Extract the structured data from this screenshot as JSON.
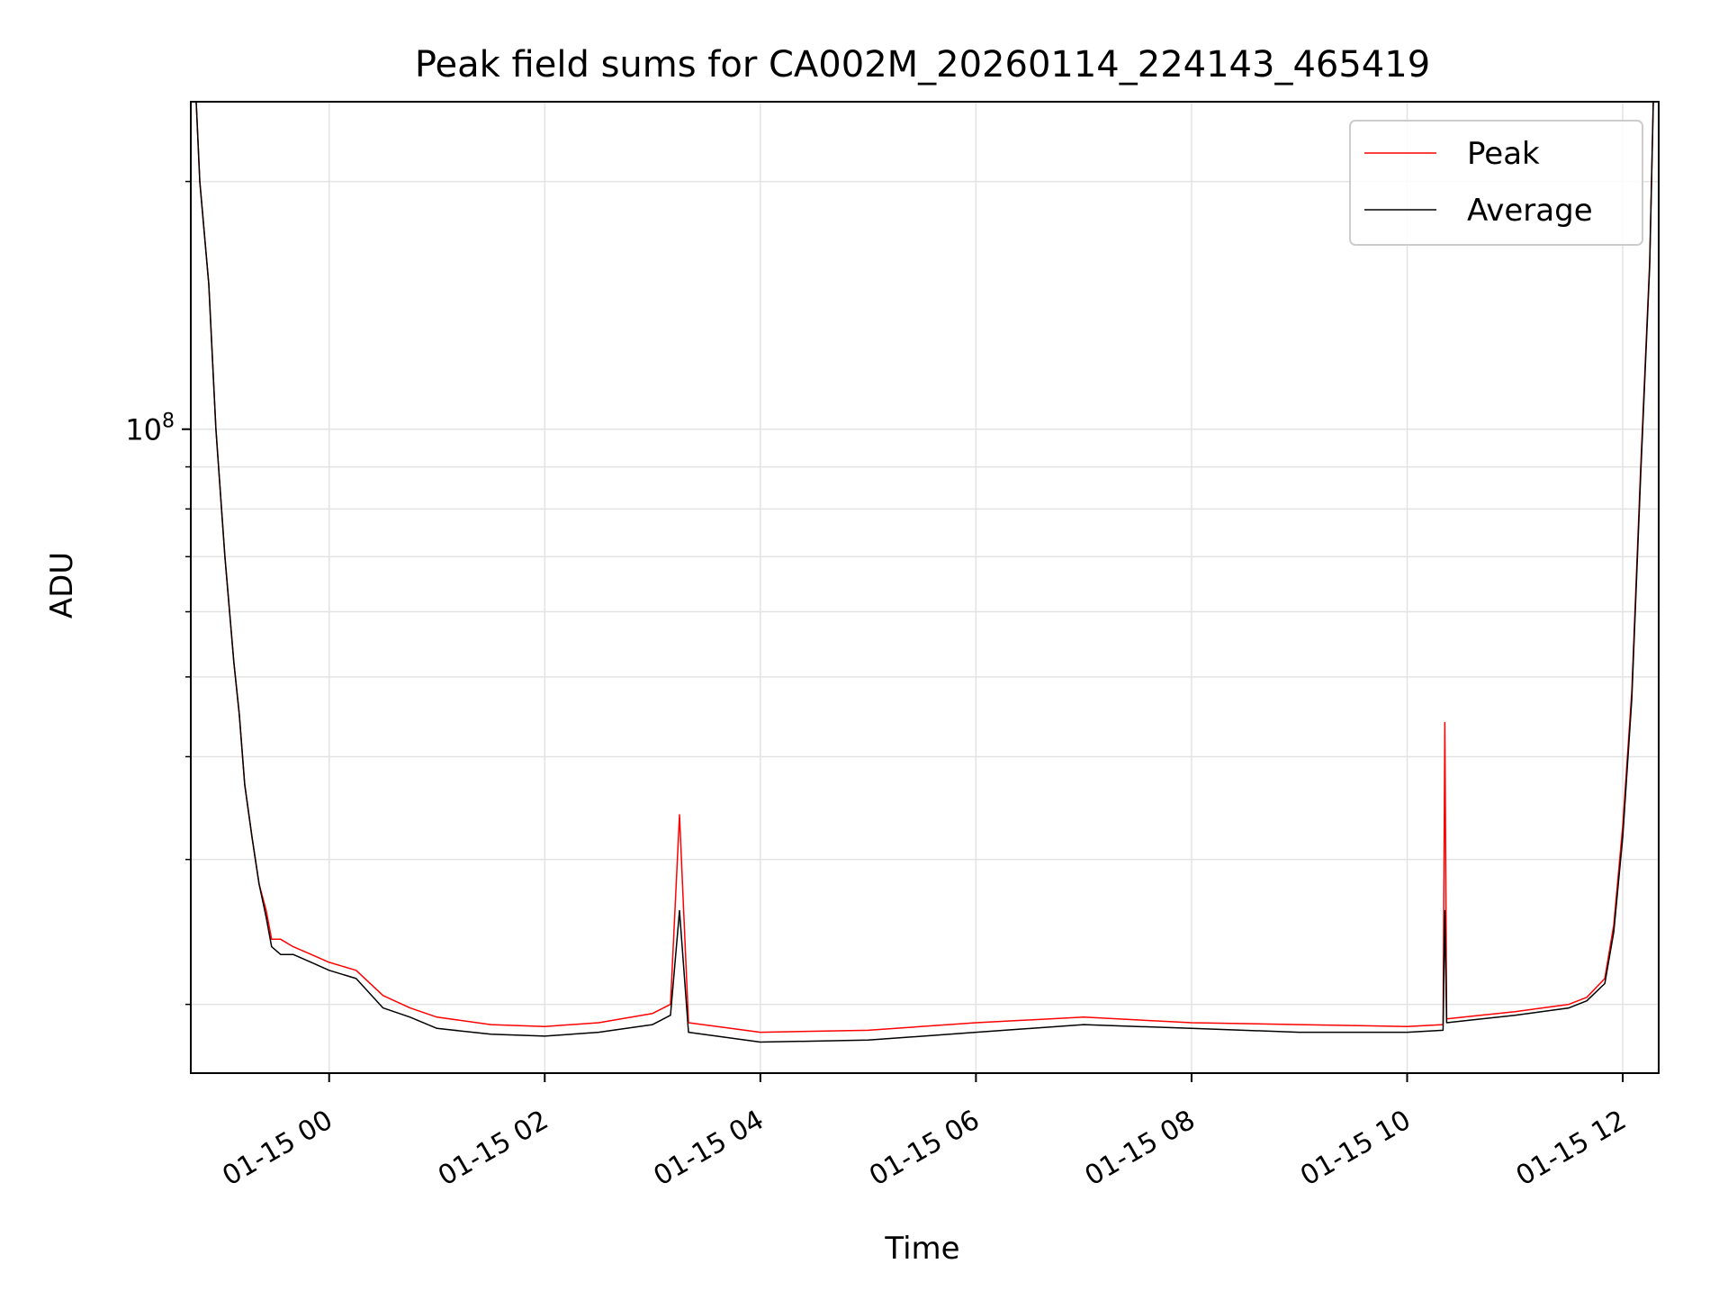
{
  "chart_data": {
    "type": "line",
    "title": "Peak field sums for CA002M_20260114_224143_465419",
    "xlabel": "Time",
    "ylabel": "ADU",
    "y_scale": "log",
    "y_tick_label": "10",
    "y_tick_exp": "8",
    "y_major_tick": 100000000,
    "ylim": [
      16500000,
      250000000
    ],
    "xlim": [
      "2026-01-14T22:43",
      "2026-01-15T12:20"
    ],
    "x_tick_labels": [
      "01-15 00",
      "01-15 02",
      "01-15 04",
      "01-15 06",
      "01-15 08",
      "01-15 10",
      "01-15 12"
    ],
    "x_ticks": [
      "2026-01-15T00:00",
      "2026-01-15T02:00",
      "2026-01-15T04:00",
      "2026-01-15T06:00",
      "2026-01-15T08:00",
      "2026-01-15T10:00",
      "2026-01-15T12:00"
    ],
    "y_minor_ticks": [
      20000000,
      30000000,
      40000000,
      50000000,
      60000000,
      70000000,
      80000000,
      90000000,
      200000000
    ],
    "grid": true,
    "legend": "top-right",
    "series": [
      {
        "name": "Peak",
        "color": "#ff0000",
        "x": [
          "2026-01-14T22:46",
          "2026-01-14T22:48",
          "2026-01-14T22:53",
          "2026-01-14T22:57",
          "2026-01-14T23:02",
          "2026-01-14T23:07",
          "2026-01-14T23:10",
          "2026-01-14T23:13",
          "2026-01-14T23:17",
          "2026-01-14T23:21",
          "2026-01-14T23:25",
          "2026-01-14T23:28",
          "2026-01-14T23:33",
          "2026-01-14T23:40",
          "2026-01-14T23:50",
          "2026-01-15T00:00",
          "2026-01-15T00:15",
          "2026-01-15T00:30",
          "2026-01-15T00:45",
          "2026-01-15T01:00",
          "2026-01-15T01:30",
          "2026-01-15T02:00",
          "2026-01-15T02:30",
          "2026-01-15T03:00",
          "2026-01-15T03:10",
          "2026-01-15T03:15",
          "2026-01-15T03:20",
          "2026-01-15T04:00",
          "2026-01-15T05:00",
          "2026-01-15T06:00",
          "2026-01-15T07:00",
          "2026-01-15T08:00",
          "2026-01-15T09:00",
          "2026-01-15T10:00",
          "2026-01-15T10:20",
          "2026-01-15T10:21",
          "2026-01-15T10:22",
          "2026-01-15T11:00",
          "2026-01-15T11:30",
          "2026-01-15T11:40",
          "2026-01-15T11:50",
          "2026-01-15T11:55",
          "2026-01-15T12:00",
          "2026-01-15T12:05",
          "2026-01-15T12:10",
          "2026-01-15T12:15",
          "2026-01-15T12:17"
        ],
        "values": [
          250000000,
          200000000,
          150000000,
          100000000,
          70000000,
          52000000,
          45000000,
          37000000,
          32000000,
          28000000,
          26000000,
          24000000,
          24000000,
          23500000,
          23000000,
          22500000,
          22000000,
          20500000,
          19800000,
          19300000,
          18900000,
          18800000,
          19000000,
          19500000,
          20000000,
          34000000,
          19000000,
          18500000,
          18600000,
          19000000,
          19300000,
          19000000,
          18900000,
          18800000,
          18900000,
          44000000,
          19200000,
          19600000,
          20000000,
          20400000,
          21500000,
          25000000,
          33000000,
          48000000,
          90000000,
          160000000,
          250000000
        ]
      },
      {
        "name": "Average",
        "color": "#000000",
        "x": [
          "2026-01-14T22:46",
          "2026-01-14T22:48",
          "2026-01-14T22:53",
          "2026-01-14T22:57",
          "2026-01-14T23:02",
          "2026-01-14T23:07",
          "2026-01-14T23:10",
          "2026-01-14T23:13",
          "2026-01-14T23:17",
          "2026-01-14T23:21",
          "2026-01-14T23:25",
          "2026-01-14T23:28",
          "2026-01-14T23:33",
          "2026-01-14T23:40",
          "2026-01-14T23:50",
          "2026-01-15T00:00",
          "2026-01-15T00:15",
          "2026-01-15T00:30",
          "2026-01-15T00:45",
          "2026-01-15T01:00",
          "2026-01-15T01:30",
          "2026-01-15T02:00",
          "2026-01-15T02:30",
          "2026-01-15T03:00",
          "2026-01-15T03:10",
          "2026-01-15T03:15",
          "2026-01-15T03:20",
          "2026-01-15T04:00",
          "2026-01-15T05:00",
          "2026-01-15T06:00",
          "2026-01-15T07:00",
          "2026-01-15T08:00",
          "2026-01-15T09:00",
          "2026-01-15T10:00",
          "2026-01-15T10:20",
          "2026-01-15T10:21",
          "2026-01-15T10:22",
          "2026-01-15T11:00",
          "2026-01-15T11:30",
          "2026-01-15T11:40",
          "2026-01-15T11:50",
          "2026-01-15T11:55",
          "2026-01-15T12:00",
          "2026-01-15T12:05",
          "2026-01-15T12:10",
          "2026-01-15T12:15",
          "2026-01-15T12:17"
        ],
        "values": [
          250000000,
          200000000,
          150000000,
          100000000,
          70000000,
          52000000,
          45000000,
          37000000,
          32000000,
          28000000,
          25500000,
          23500000,
          23000000,
          23000000,
          22500000,
          22000000,
          21500000,
          19800000,
          19300000,
          18700000,
          18400000,
          18300000,
          18500000,
          18900000,
          19400000,
          26000000,
          18500000,
          18000000,
          18100000,
          18500000,
          18900000,
          18700000,
          18500000,
          18500000,
          18600000,
          26000000,
          19000000,
          19400000,
          19800000,
          20200000,
          21200000,
          24500000,
          32000000,
          47000000,
          88000000,
          158000000,
          250000000
        ]
      }
    ]
  }
}
